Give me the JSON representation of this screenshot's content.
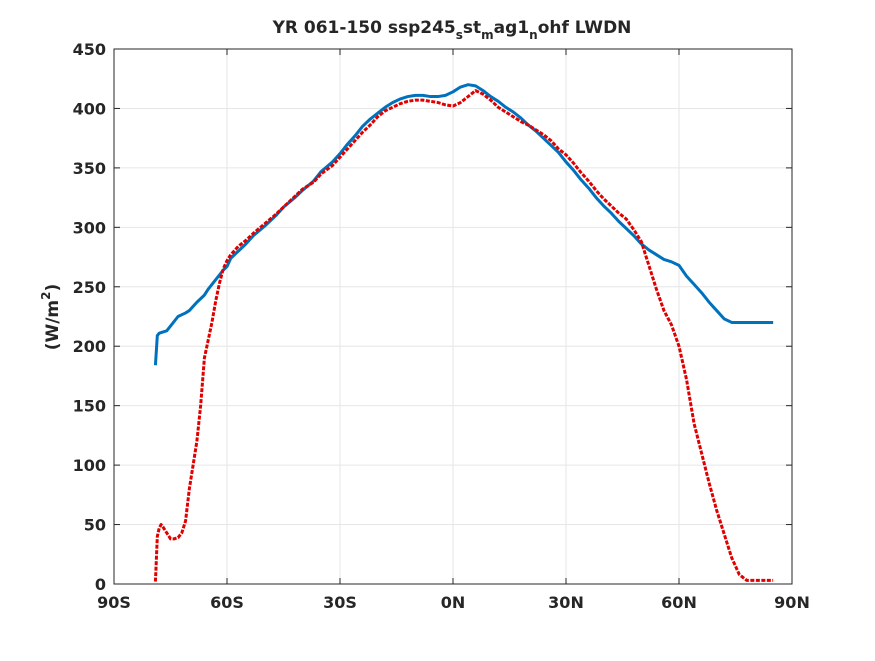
{
  "chart_data": {
    "type": "line",
    "title": {
      "prefix": "YR 061-150 ssp245",
      "sub1": "s",
      "mid1": "st",
      "sub2": "m",
      "mid2": "ag1",
      "sub3": "n",
      "suffix": "ohf LWDN"
    },
    "ylabel": {
      "prefix": "(W/m",
      "sup": "2",
      "suffix": ")"
    },
    "xlim": [
      -90,
      90
    ],
    "ylim": [
      0,
      450
    ],
    "grid": true,
    "x_ticks": [
      {
        "value": -90,
        "label": "90S"
      },
      {
        "value": -60,
        "label": "60S"
      },
      {
        "value": -30,
        "label": "30S"
      },
      {
        "value": 0,
        "label": "0N"
      },
      {
        "value": 30,
        "label": "30N"
      },
      {
        "value": 60,
        "label": "60N"
      },
      {
        "value": 90,
        "label": "90N"
      }
    ],
    "y_ticks": [
      0,
      50,
      100,
      150,
      200,
      250,
      300,
      350,
      400,
      450
    ],
    "series": [
      {
        "color": "#0072BD",
        "style": "solid",
        "x": [
          -79,
          -78.5,
          -78,
          -76,
          -75,
          -73,
          -71,
          -70,
          -68,
          -66,
          -65,
          -63,
          -61,
          -60,
          -59,
          -57,
          -55,
          -53,
          -50,
          -47,
          -45,
          -42,
          -40,
          -37,
          -35,
          -32,
          -30,
          -28,
          -26,
          -24,
          -22,
          -20,
          -18,
          -16,
          -14,
          -12,
          -10,
          -8,
          -6,
          -4,
          -2,
          0,
          2,
          4,
          6,
          8,
          10,
          12,
          14,
          16,
          18,
          20,
          22,
          24,
          26,
          28,
          30,
          32,
          34,
          36,
          38,
          40,
          42,
          44,
          46,
          48,
          50,
          52,
          54,
          56,
          58,
          60,
          62,
          64,
          66,
          68,
          70,
          72,
          74,
          76,
          78,
          80,
          82,
          84,
          85
        ],
        "y": [
          184,
          209,
          211,
          213,
          217,
          225,
          228,
          230,
          237,
          243,
          248,
          256,
          264,
          267,
          274,
          280,
          286,
          293,
          301,
          310,
          317,
          325,
          331,
          339,
          347,
          355,
          362,
          370,
          377,
          385,
          391,
          396,
          401,
          405,
          408,
          410,
          411,
          411,
          410,
          410,
          411,
          414,
          418,
          420,
          419,
          415,
          410,
          406,
          401,
          397,
          392,
          386,
          381,
          375,
          369,
          363,
          355,
          348,
          340,
          333,
          325,
          318,
          312,
          305,
          299,
          293,
          286,
          281,
          277,
          273,
          271,
          268,
          259,
          252,
          245,
          237,
          230,
          223,
          220,
          220,
          220,
          220,
          220,
          220,
          220
        ]
      },
      {
        "color": "#E00000",
        "style": "dashed",
        "x": [
          -79,
          -78.5,
          -78,
          -77.5,
          -77,
          -76,
          -75,
          -74,
          -73,
          -72,
          -71,
          -70,
          -69,
          -68,
          -67,
          -66,
          -65,
          -64,
          -63,
          -62,
          -61,
          -60,
          -59,
          -57,
          -55,
          -53,
          -50,
          -47,
          -45,
          -42,
          -40,
          -37,
          -35,
          -32,
          -30,
          -28,
          -26,
          -24,
          -22,
          -20,
          -18,
          -16,
          -14,
          -12,
          -10,
          -8,
          -6,
          -4,
          -2,
          0,
          2,
          4,
          6,
          8,
          10,
          12,
          14,
          16,
          18,
          20,
          22,
          24,
          26,
          28,
          30,
          32,
          34,
          36,
          38,
          40,
          42,
          44,
          46,
          48,
          50,
          52,
          54,
          56,
          58,
          60,
          62,
          64,
          66,
          68,
          70,
          72,
          74,
          76,
          78,
          80,
          82,
          84,
          85
        ],
        "y": [
          2,
          40,
          47,
          50,
          48,
          43,
          38,
          38,
          39,
          43,
          53,
          80,
          100,
          120,
          150,
          190,
          205,
          220,
          238,
          253,
          265,
          272,
          277,
          284,
          289,
          295,
          303,
          311,
          317,
          326,
          332,
          338,
          345,
          352,
          359,
          366,
          373,
          380,
          386,
          393,
          398,
          401,
          404,
          406,
          407,
          407,
          406,
          405,
          403,
          402,
          405,
          410,
          415,
          412,
          407,
          401,
          397,
          393,
          389,
          386,
          382,
          378,
          373,
          366,
          361,
          354,
          346,
          339,
          331,
          324,
          318,
          312,
          307,
          298,
          288,
          268,
          248,
          230,
          218,
          200,
          172,
          135,
          110,
          85,
          62,
          42,
          22,
          8,
          3,
          3,
          3,
          3,
          3
        ]
      }
    ]
  }
}
